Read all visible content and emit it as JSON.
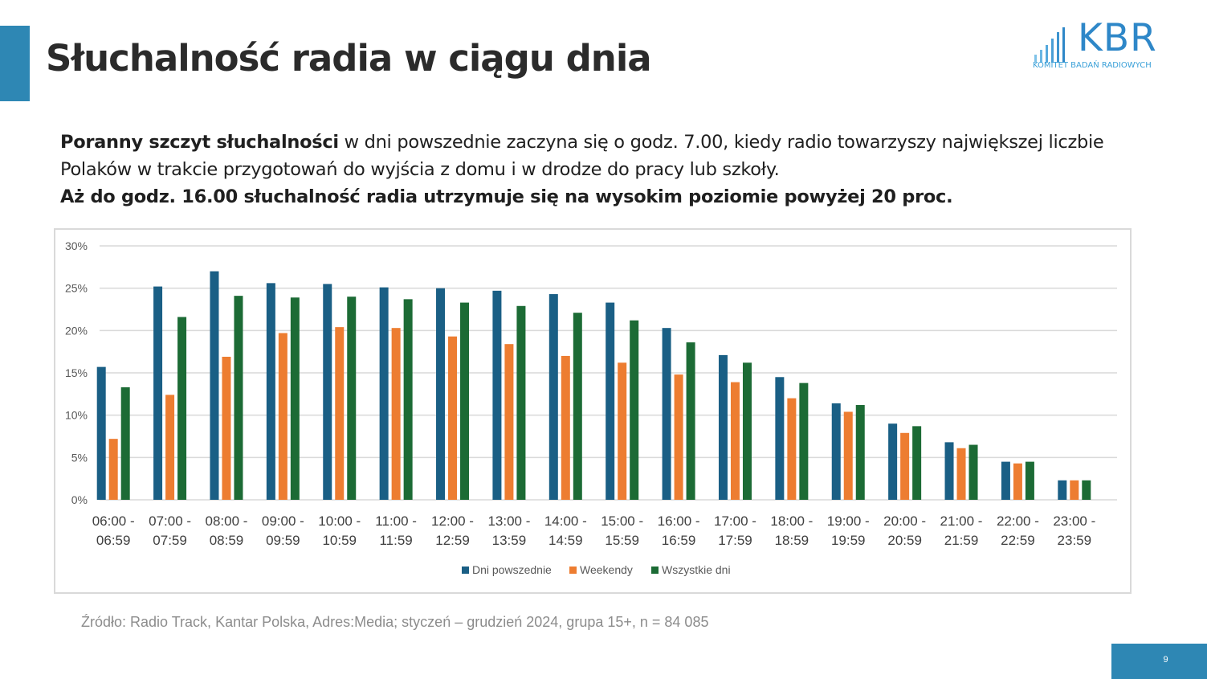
{
  "header": {
    "title": "Słuchalność radia w ciągu dnia"
  },
  "logo": {
    "text": "KBR",
    "subtitle": "KOMITET BADAŃ RADIOWYCH",
    "color": "#2e87c8"
  },
  "intro": {
    "line1_bold": "Poranny szczyt słuchalności",
    "line1_rest": " w dni powszednie zaczyna się o godz. 7.00, kiedy radio towarzyszy największej liczbie",
    "line2": "Polaków w trakcie przygotowań do wyjścia z domu i w drodze do pracy lub szkoły.",
    "line3_bold": "Aż do godz. 16.00 słuchalność radia utrzymuje się na wysokim poziomie powyżej 20 proc."
  },
  "chart_data": {
    "type": "bar",
    "categories": [
      [
        "06:00 -",
        "06:59"
      ],
      [
        "07:00 -",
        "07:59"
      ],
      [
        "08:00 -",
        "08:59"
      ],
      [
        "09:00 -",
        "09:59"
      ],
      [
        "10:00 -",
        "10:59"
      ],
      [
        "11:00 -",
        "11:59"
      ],
      [
        "12:00 -",
        "12:59"
      ],
      [
        "13:00 -",
        "13:59"
      ],
      [
        "14:00 -",
        "14:59"
      ],
      [
        "15:00 -",
        "15:59"
      ],
      [
        "16:00 -",
        "16:59"
      ],
      [
        "17:00 -",
        "17:59"
      ],
      [
        "18:00 -",
        "18:59"
      ],
      [
        "19:00 -",
        "19:59"
      ],
      [
        "20:00 -",
        "20:59"
      ],
      [
        "21:00 -",
        "21:59"
      ],
      [
        "22:00 -",
        "22:59"
      ],
      [
        "23:00 -",
        "23:59"
      ]
    ],
    "series": [
      {
        "name": "Dni powszednie",
        "color": "#1a5f85",
        "values": [
          15.7,
          25.2,
          27.0,
          25.6,
          25.5,
          25.1,
          25.0,
          24.7,
          24.3,
          23.3,
          20.3,
          17.1,
          14.5,
          11.4,
          9.0,
          6.8,
          4.5,
          2.3
        ]
      },
      {
        "name": "Weekendy",
        "color": "#ed7d31",
        "values": [
          7.2,
          12.4,
          16.9,
          19.7,
          20.4,
          20.3,
          19.3,
          18.4,
          17.0,
          16.2,
          14.8,
          13.9,
          12.0,
          10.4,
          7.9,
          6.1,
          4.3,
          2.3
        ]
      },
      {
        "name": "Wszystkie dni",
        "color": "#1c6b35",
        "values": [
          13.3,
          21.6,
          24.1,
          23.9,
          24.0,
          23.7,
          23.3,
          22.9,
          22.1,
          21.2,
          18.6,
          16.2,
          13.8,
          11.2,
          8.7,
          6.5,
          4.5,
          2.3
        ]
      }
    ],
    "yticks": [
      "0%",
      "5%",
      "10%",
      "15%",
      "20%",
      "25%",
      "30%"
    ],
    "ylim": [
      0,
      30
    ],
    "grid": true,
    "legend_position": "bottom"
  },
  "footer": {
    "source": "Źródło: Radio Track, Kantar Polska, Adres:Media; styczeń – grudzień 2024, grupa 15+, n = 84 085",
    "page_number": "9"
  },
  "colors": {
    "accent": "#2e87b4",
    "title_text": "#2b2b2b",
    "gridline": "#d9d9d9"
  }
}
